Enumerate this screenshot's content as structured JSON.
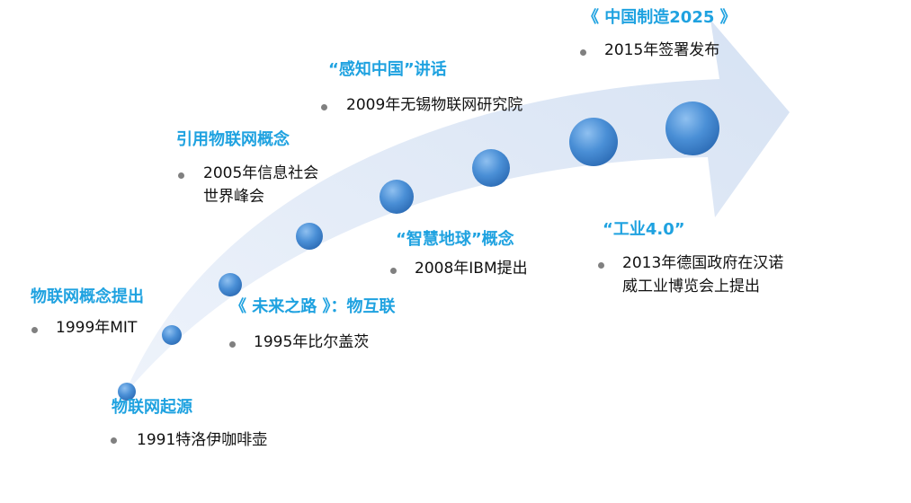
{
  "colors": {
    "title": "#1fa2e0",
    "arrow": "#dbe6f5",
    "node": "#4a8fd6",
    "text": "#111111",
    "bullet": "#808080"
  },
  "events": [
    {
      "title": "物联网起源",
      "detail": [
        "1991特洛伊咖啡壶"
      ]
    },
    {
      "title": "物联网概念提出",
      "detail": [
        "1999年MIT"
      ]
    },
    {
      "title": "《 未来之路 》：物互联",
      "detail": [
        "1995年比尔盖茨"
      ]
    },
    {
      "title": "引用物联网概念",
      "detail": [
        "2005年信息社会",
        "世界峰会"
      ]
    },
    {
      "title": "“智慧地球”概念",
      "detail": [
        "2008年IBM提出"
      ]
    },
    {
      "title": "“感知中国”讲话",
      "detail": [
        "2009年无锡物联网研究院"
      ]
    },
    {
      "title": "《 中国制造2025 》",
      "detail": [
        "2015年签署发布"
      ]
    },
    {
      "title": "“工业4.0”",
      "detail": [
        "2013年德国政府在汉诺",
        "威工业博览会上提出"
      ]
    }
  ]
}
